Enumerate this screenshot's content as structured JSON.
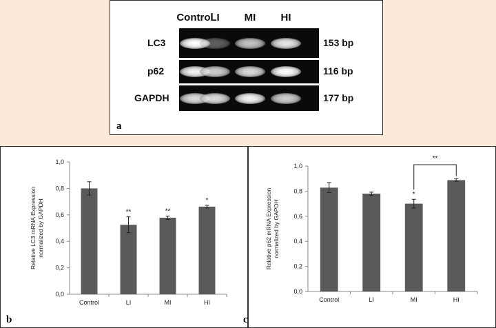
{
  "panel_a": {
    "letter": "a",
    "lanes": [
      "Control",
      "LI",
      "MI",
      "HI"
    ],
    "rows": [
      {
        "gene": "LC3",
        "size": "153 bp",
        "intensity": [
          1.0,
          0.35,
          0.75,
          0.9
        ]
      },
      {
        "gene": "p62",
        "size": "116 bp",
        "intensity": [
          0.95,
          0.8,
          0.85,
          1.0
        ]
      },
      {
        "gene": "GAPDH",
        "size": "177 bp",
        "intensity": [
          0.85,
          0.85,
          0.95,
          0.8
        ]
      }
    ]
  },
  "chart_data": [
    {
      "type": "bar",
      "letter": "b",
      "categories": [
        "Control",
        "LI",
        "MI",
        "HI"
      ],
      "values": [
        0.8,
        0.525,
        0.578,
        0.662
      ],
      "errors": [
        0.05,
        0.06,
        0.012,
        0.01
      ],
      "significance": [
        "",
        "**",
        "**",
        "*"
      ],
      "ylabel": "Relative LC3 mRNA Expression normalized by GAPDH",
      "yticks": [
        "0,0",
        "0,2",
        "0,4",
        "0,6",
        "0,8",
        "1,0"
      ],
      "ylim": [
        0,
        1.0
      ],
      "bar_color": "#5a5a5a"
    },
    {
      "type": "bar",
      "letter": "c",
      "categories": [
        "Control",
        "LI",
        "MI",
        "HI"
      ],
      "values": [
        0.828,
        0.78,
        0.7,
        0.888
      ],
      "errors": [
        0.04,
        0.012,
        0.035,
        0.01
      ],
      "significance": [
        "",
        "",
        "*",
        ""
      ],
      "bracket": {
        "from": 2,
        "to": 3,
        "label": "**"
      },
      "ylabel": "Relative p62 mRNA Expression normalized by GAPDH",
      "yticks": [
        "0,0",
        "0,2",
        "0,4",
        "0,6",
        "0,8",
        "1,0"
      ],
      "ylim": [
        0,
        1.0
      ],
      "bar_color": "#5a5a5a"
    }
  ]
}
